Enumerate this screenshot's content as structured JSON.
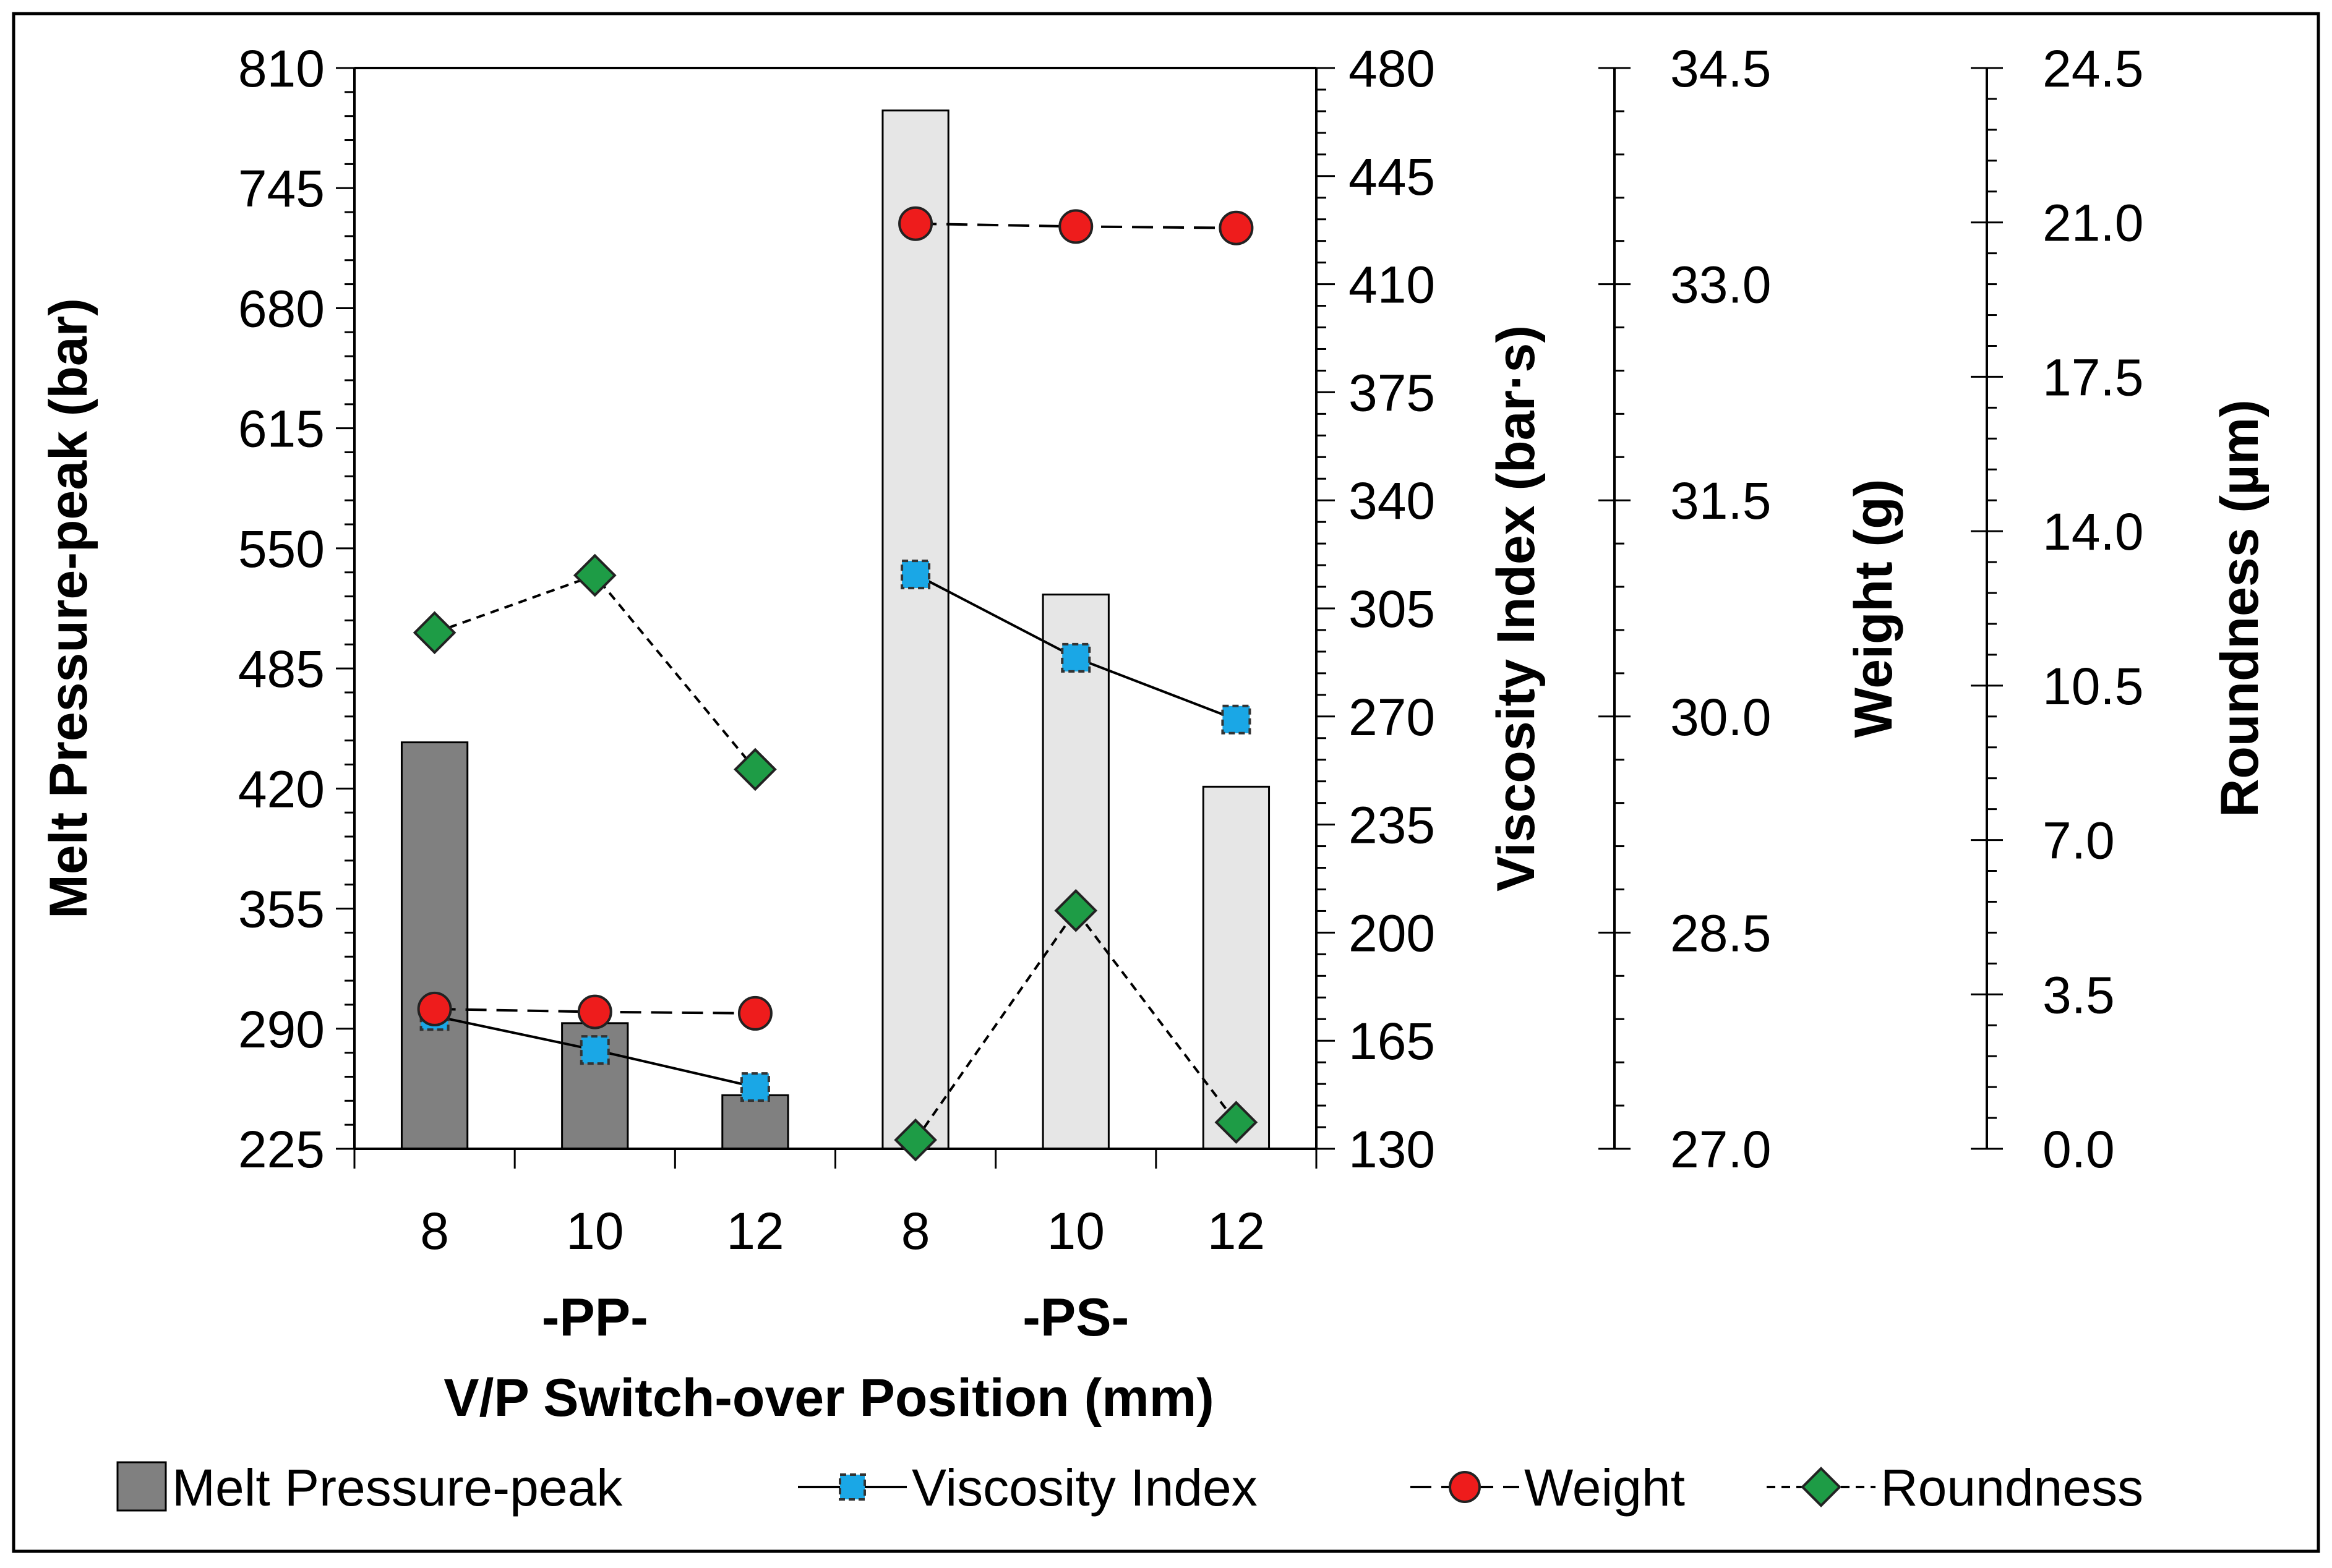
{
  "chart_data": {
    "type": "bar+line",
    "xlabel": "V/P Switch-over Position (mm)",
    "groups": [
      {
        "label": "-PP-",
        "categories": [
          "8",
          "10",
          "12"
        ]
      },
      {
        "label": "-PS-",
        "categories": [
          "8",
          "10",
          "12"
        ]
      }
    ],
    "categories": [
      "8",
      "10",
      "12",
      "8",
      "10",
      "12"
    ],
    "axes": {
      "pressure": {
        "label": "Melt Pressure-peak (bar)",
        "min": 225,
        "max": 810,
        "step": 65,
        "ticks": [
          "225",
          "290",
          "355",
          "420",
          "485",
          "550",
          "615",
          "680",
          "745",
          "810"
        ]
      },
      "viscosity": {
        "label": "Viscosity Index (bar·s)",
        "min": 130,
        "max": 480,
        "step": 35,
        "ticks": [
          "130",
          "165",
          "200",
          "235",
          "270",
          "305",
          "340",
          "375",
          "410",
          "445",
          "480"
        ]
      },
      "weight": {
        "label": "Weight (g)",
        "min": 27.0,
        "max": 34.5,
        "step": 1.5,
        "ticks": [
          "27.0",
          "28.5",
          "30.0",
          "31.5",
          "33.0",
          "34.5"
        ]
      },
      "roundness": {
        "label": "Roundness (µm)",
        "min": 0.0,
        "max": 24.5,
        "step": 3.5,
        "ticks": [
          "0.0",
          "3.5",
          "7.0",
          "10.5",
          "14.0",
          "17.5",
          "21.0",
          "24.5"
        ]
      }
    },
    "series": [
      {
        "name": "Melt Pressure-peak",
        "kind": "bar",
        "axis": "pressure",
        "values": [
          445,
          293,
          254,
          787,
          525,
          421
        ],
        "colors": [
          "#808080",
          "#808080",
          "#808080",
          "#e6e6e6",
          "#e6e6e6",
          "#e6e6e6"
        ]
      },
      {
        "name": "Viscosity Index",
        "kind": "line",
        "axis": "viscosity",
        "marker": "square",
        "color": "#1aa7e6",
        "line": "solid",
        "values": [
          173,
          162,
          150,
          316,
          289,
          269
        ]
      },
      {
        "name": "Weight",
        "kind": "line",
        "axis": "weight",
        "marker": "circle",
        "color": "#ee1c1c",
        "line": "dashed",
        "values": [
          27.97,
          27.95,
          27.94,
          33.42,
          33.4,
          33.39
        ]
      },
      {
        "name": "Roundness",
        "kind": "line",
        "axis": "roundness",
        "marker": "diamond",
        "color": "#1e9c46",
        "line": "dotted",
        "values": [
          11.7,
          13.0,
          8.6,
          0.2,
          5.4,
          0.6
        ]
      }
    ],
    "legend": [
      "Melt Pressure-peak",
      "Viscosity Index",
      "Weight",
      "Roundness"
    ]
  }
}
